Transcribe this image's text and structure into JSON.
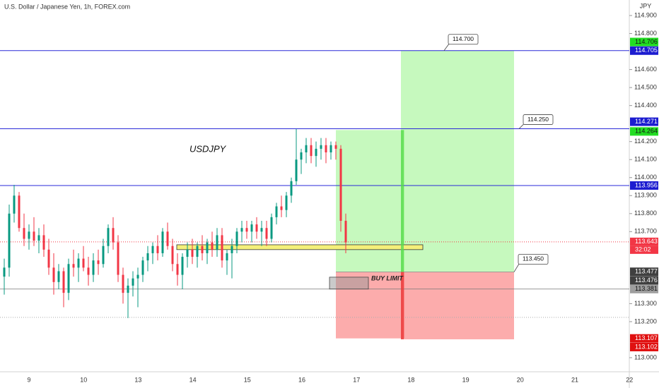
{
  "header": {
    "title": "U.S. Dollar / Japanese Yen, 1h, FOREX.com",
    "currency": "JPY"
  },
  "symbol_label": "USDJPY",
  "price_axis": {
    "ylim": [
      113.0,
      114.9
    ],
    "ticks": [
      {
        "value": 114.9,
        "label": "114.900"
      },
      {
        "value": 114.8,
        "label": "114.800"
      },
      {
        "value": 114.6,
        "label": "114.600"
      },
      {
        "value": 114.5,
        "label": "114.500"
      },
      {
        "value": 114.4,
        "label": "114.400"
      },
      {
        "value": 114.2,
        "label": "114.200"
      },
      {
        "value": 114.1,
        "label": "114.100"
      },
      {
        "value": 114.0,
        "label": "114.000"
      },
      {
        "value": 113.9,
        "label": "113.900"
      },
      {
        "value": 113.8,
        "label": "113.800"
      },
      {
        "value": 113.7,
        "label": "113.700"
      },
      {
        "value": 113.3,
        "label": "113.300"
      },
      {
        "value": 113.2,
        "label": "113.200"
      },
      {
        "value": 113.0,
        "label": "113.000"
      }
    ]
  },
  "time_axis": {
    "labels": [
      "9",
      "10",
      "13",
      "14",
      "15",
      "16",
      "17",
      "18",
      "19",
      "20",
      "21",
      "22"
    ]
  },
  "candles": [
    [
      113.45,
      113.55,
      113.35,
      113.5
    ],
    [
      113.5,
      113.85,
      113.45,
      113.8
    ],
    [
      113.8,
      113.96,
      113.75,
      113.9
    ],
    [
      113.9,
      113.92,
      113.7,
      113.72
    ],
    [
      113.72,
      113.8,
      113.62,
      113.66
    ],
    [
      113.66,
      113.74,
      113.6,
      113.7
    ],
    [
      113.7,
      113.78,
      113.62,
      113.65
    ],
    [
      113.65,
      113.72,
      113.58,
      113.68
    ],
    [
      113.68,
      113.74,
      113.56,
      113.6
    ],
    [
      113.6,
      113.66,
      113.46,
      113.5
    ],
    [
      113.5,
      113.58,
      113.35,
      113.42
    ],
    [
      113.42,
      113.52,
      113.38,
      113.48
    ],
    [
      113.48,
      113.5,
      113.28,
      113.36
    ],
    [
      113.36,
      113.55,
      113.32,
      113.52
    ],
    [
      113.52,
      113.6,
      113.45,
      113.5
    ],
    [
      113.5,
      113.58,
      113.42,
      113.55
    ],
    [
      113.55,
      113.62,
      113.48,
      113.5
    ],
    [
      113.5,
      113.56,
      113.4,
      113.46
    ],
    [
      113.46,
      113.58,
      113.42,
      113.54
    ],
    [
      113.54,
      113.6,
      113.46,
      113.52
    ],
    [
      113.52,
      113.66,
      113.5,
      113.62
    ],
    [
      113.62,
      113.74,
      113.58,
      113.72
    ],
    [
      113.72,
      113.78,
      113.6,
      113.64
    ],
    [
      113.64,
      113.68,
      113.42,
      113.46
    ],
    [
      113.46,
      113.5,
      113.3,
      113.36
    ],
    [
      113.36,
      113.44,
      113.22,
      113.4
    ],
    [
      113.4,
      113.48,
      113.34,
      113.44
    ],
    [
      113.44,
      113.5,
      113.28,
      113.46
    ],
    [
      113.46,
      113.56,
      113.42,
      113.54
    ],
    [
      113.54,
      113.62,
      113.48,
      113.58
    ],
    [
      113.58,
      113.64,
      113.52,
      113.62
    ],
    [
      113.62,
      113.68,
      113.54,
      113.58
    ],
    [
      113.58,
      113.72,
      113.56,
      113.7
    ],
    [
      113.7,
      113.75,
      113.6,
      113.62
    ],
    [
      113.62,
      113.66,
      113.48,
      113.52
    ],
    [
      113.52,
      113.58,
      113.4,
      113.46
    ],
    [
      113.46,
      113.58,
      113.38,
      113.56
    ],
    [
      113.56,
      113.64,
      113.5,
      113.6
    ],
    [
      113.6,
      113.66,
      113.52,
      113.56
    ],
    [
      113.56,
      113.64,
      113.5,
      113.62
    ],
    [
      113.62,
      113.68,
      113.54,
      113.58
    ],
    [
      113.58,
      113.66,
      113.52,
      113.64
    ],
    [
      113.64,
      113.7,
      113.56,
      113.6
    ],
    [
      113.6,
      113.72,
      113.56,
      113.68
    ],
    [
      113.68,
      113.72,
      113.5,
      113.54
    ],
    [
      113.54,
      113.6,
      113.46,
      113.58
    ],
    [
      113.58,
      113.66,
      113.44,
      113.62
    ],
    [
      113.62,
      113.72,
      113.58,
      113.7
    ],
    [
      113.7,
      113.76,
      113.64,
      113.72
    ],
    [
      113.72,
      113.76,
      113.66,
      113.7
    ],
    [
      113.7,
      113.76,
      113.64,
      113.74
    ],
    [
      113.74,
      113.78,
      113.66,
      113.7
    ],
    [
      113.7,
      113.76,
      113.62,
      113.72
    ],
    [
      113.72,
      113.76,
      113.62,
      113.66
    ],
    [
      113.66,
      113.8,
      113.64,
      113.78
    ],
    [
      113.78,
      113.86,
      113.74,
      113.84
    ],
    [
      113.84,
      113.9,
      113.78,
      113.82
    ],
    [
      113.82,
      113.92,
      113.78,
      113.9
    ],
    [
      113.9,
      114.0,
      113.86,
      113.98
    ],
    [
      113.98,
      114.27,
      113.96,
      114.1
    ],
    [
      114.1,
      114.16,
      114.02,
      114.14
    ],
    [
      114.14,
      114.22,
      114.08,
      114.18
    ],
    [
      114.18,
      114.22,
      114.08,
      114.12
    ],
    [
      114.12,
      114.2,
      114.06,
      114.16
    ],
    [
      114.16,
      114.22,
      114.1,
      114.18
    ],
    [
      114.18,
      114.22,
      114.08,
      114.14
    ],
    [
      114.14,
      114.2,
      114.1,
      114.18
    ],
    [
      114.18,
      114.2,
      114.1,
      114.16
    ],
    [
      114.16,
      114.18,
      113.7,
      113.76
    ],
    [
      113.76,
      113.8,
      113.58,
      113.64
    ]
  ],
  "levels": [
    114.705,
    114.271,
    113.956
  ],
  "stop_line": 113.381,
  "last_price_line": 113.643,
  "session_line": 113.224,
  "zone": [
    113.6,
    113.627
  ],
  "position": {
    "target_a": 114.264,
    "target_b": 114.705,
    "entry": 113.476,
    "stop_a": 113.107,
    "stop_b": 113.102
  },
  "order": {
    "label": "BUY LIMIT",
    "top": 113.447,
    "bottom": 113.381
  },
  "callouts": [
    {
      "label": "114.700"
    },
    {
      "label": "114.250"
    },
    {
      "label": "113.450"
    }
  ],
  "price_tags": [
    {
      "value": 114.706,
      "label": "114.706",
      "color": "#22dd22"
    },
    {
      "value": 114.705,
      "label": "114.705",
      "color": "#1c1cd0"
    },
    {
      "value": 114.271,
      "label": "114.271",
      "color": "#1c1cd0"
    },
    {
      "value": 114.264,
      "label": "114.264",
      "color": "#22dd22"
    },
    {
      "value": 113.956,
      "label": "113.956",
      "color": "#1c1cd0"
    },
    {
      "value": 113.643,
      "label": "113.643",
      "color": "#f23645"
    },
    {
      "value": 113.477,
      "label": "113.477",
      "color": "#3f3f3f"
    },
    {
      "value": 113.476,
      "label": "113.476",
      "color": "#3f3f3f"
    },
    {
      "value": 113.381,
      "label": "113.381",
      "color": "#9e9e9e"
    },
    {
      "value": 113.107,
      "label": "113.107",
      "color": "#e01010"
    },
    {
      "value": 113.102,
      "label": "113.102",
      "color": "#e01010"
    }
  ],
  "countdown": "32:02"
}
